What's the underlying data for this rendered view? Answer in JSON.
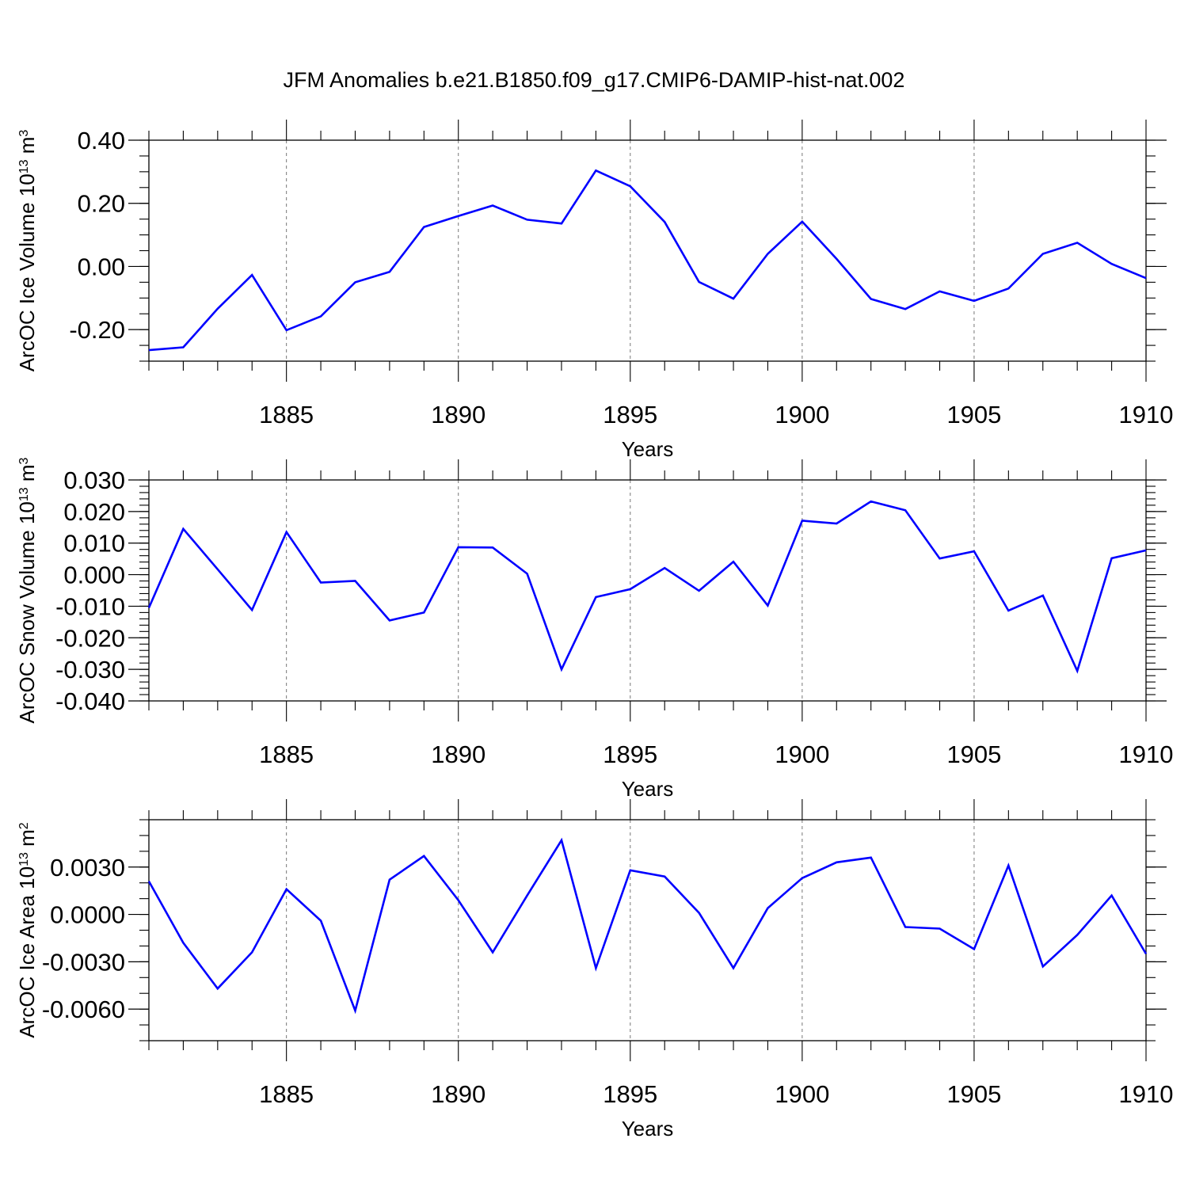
{
  "figure": {
    "title": "JFM Anomalies b.e21.B1850.f09_g17.CMIP6-DAMIP-hist-nat.002"
  },
  "colors": {
    "line": "#0000ff",
    "axis": "#000000",
    "grid": "#777777",
    "background": "#ffffff"
  },
  "chart_data": [
    {
      "type": "line",
      "ylabel_main": "ArcOC Ice Volume 10",
      "ylabel_exp": "13",
      "ylabel_unit": " m",
      "ylabel_unit_exp": "3",
      "xlabel": "Years",
      "xlim": [
        1881,
        1910
      ],
      "ylim": [
        -0.3,
        0.4
      ],
      "xticks": [
        1885,
        1890,
        1895,
        1900,
        1905,
        1910
      ],
      "xtick_labels": [
        "1885",
        "1890",
        "1895",
        "1900",
        "1905",
        "1910"
      ],
      "yticks": [
        -0.2,
        0.0,
        0.2,
        0.4
      ],
      "ytick_labels": [
        "-0.20",
        "0.00",
        "0.20",
        "0.40"
      ],
      "yminor_step": 0.05,
      "x": [
        1881,
        1882,
        1883,
        1884,
        1885,
        1886,
        1887,
        1888,
        1889,
        1890,
        1891,
        1892,
        1893,
        1894,
        1895,
        1896,
        1897,
        1898,
        1899,
        1900,
        1901,
        1902,
        1903,
        1904,
        1905,
        1906,
        1907,
        1908,
        1909,
        1910
      ],
      "values": [
        -0.265,
        -0.256,
        -0.134,
        -0.027,
        -0.202,
        -0.158,
        -0.05,
        -0.017,
        0.125,
        0.16,
        0.193,
        0.148,
        0.136,
        0.304,
        0.254,
        0.141,
        -0.049,
        -0.102,
        0.04,
        0.142,
        0.024,
        -0.103,
        -0.135,
        -0.079,
        -0.109,
        -0.07,
        0.04,
        0.075,
        0.008,
        -0.037
      ]
    },
    {
      "type": "line",
      "ylabel_main": "ArcOC Snow Volume 10",
      "ylabel_exp": "13",
      "ylabel_unit": " m",
      "ylabel_unit_exp": "3",
      "xlabel": "Years",
      "xlim": [
        1881,
        1910
      ],
      "ylim": [
        -0.04,
        0.03
      ],
      "xticks": [
        1885,
        1890,
        1895,
        1900,
        1905,
        1910
      ],
      "xtick_labels": [
        "1885",
        "1890",
        "1895",
        "1900",
        "1905",
        "1910"
      ],
      "yticks": [
        -0.04,
        -0.03,
        -0.02,
        -0.01,
        0.0,
        0.01,
        0.02,
        0.03
      ],
      "ytick_labels": [
        "-0.040",
        "-0.030",
        "-0.020",
        "-0.010",
        "0.000",
        "0.010",
        "0.020",
        "0.030"
      ],
      "yminor_step": 0.002,
      "x": [
        1881,
        1882,
        1883,
        1884,
        1885,
        1886,
        1887,
        1888,
        1889,
        1890,
        1891,
        1892,
        1893,
        1894,
        1895,
        1896,
        1897,
        1898,
        1899,
        1900,
        1901,
        1902,
        1903,
        1904,
        1905,
        1906,
        1907,
        1908,
        1909,
        1910
      ],
      "values": [
        -0.0105,
        0.0145,
        0.0017,
        -0.0112,
        0.0135,
        -0.0025,
        -0.002,
        -0.0145,
        -0.012,
        0.0087,
        0.0086,
        0.0003,
        -0.03,
        -0.0071,
        -0.0046,
        0.0021,
        -0.0051,
        0.0041,
        -0.0098,
        0.0171,
        0.0162,
        0.0232,
        0.0204,
        0.0051,
        0.0074,
        -0.0114,
        -0.0066,
        -0.0305,
        0.0052,
        0.0077
      ]
    },
    {
      "type": "line",
      "ylabel_main": "ArcOC Ice Area 10",
      "ylabel_exp": "13",
      "ylabel_unit": " m",
      "ylabel_unit_exp": "2",
      "xlabel": "Years",
      "xlim": [
        1881,
        1910
      ],
      "ylim": [
        -0.008,
        0.006
      ],
      "xticks": [
        1885,
        1890,
        1895,
        1900,
        1905,
        1910
      ],
      "xtick_labels": [
        "1885",
        "1890",
        "1895",
        "1900",
        "1905",
        "1910"
      ],
      "yticks": [
        -0.006,
        -0.003,
        0.0,
        0.003
      ],
      "ytick_labels": [
        "-0.0060",
        "-0.0030",
        "0.0000",
        "0.0030"
      ],
      "yminor_step": 0.001,
      "x": [
        1881,
        1882,
        1883,
        1884,
        1885,
        1886,
        1887,
        1888,
        1889,
        1890,
        1891,
        1892,
        1893,
        1894,
        1895,
        1896,
        1897,
        1898,
        1899,
        1900,
        1901,
        1902,
        1903,
        1904,
        1905,
        1906,
        1907,
        1908,
        1909,
        1910
      ],
      "values": [
        0.0021,
        -0.0018,
        -0.0047,
        -0.0024,
        0.0016,
        -0.0004,
        -0.0061,
        0.0022,
        0.0037,
        0.0009,
        -0.0024,
        0.0012,
        0.0047,
        -0.0034,
        0.0028,
        0.0024,
        0.0001,
        -0.0034,
        0.0004,
        0.0023,
        0.0033,
        0.0036,
        -0.0008,
        -0.0009,
        -0.0022,
        0.0031,
        -0.0033,
        -0.0013,
        0.0012,
        -0.0025
      ]
    }
  ]
}
